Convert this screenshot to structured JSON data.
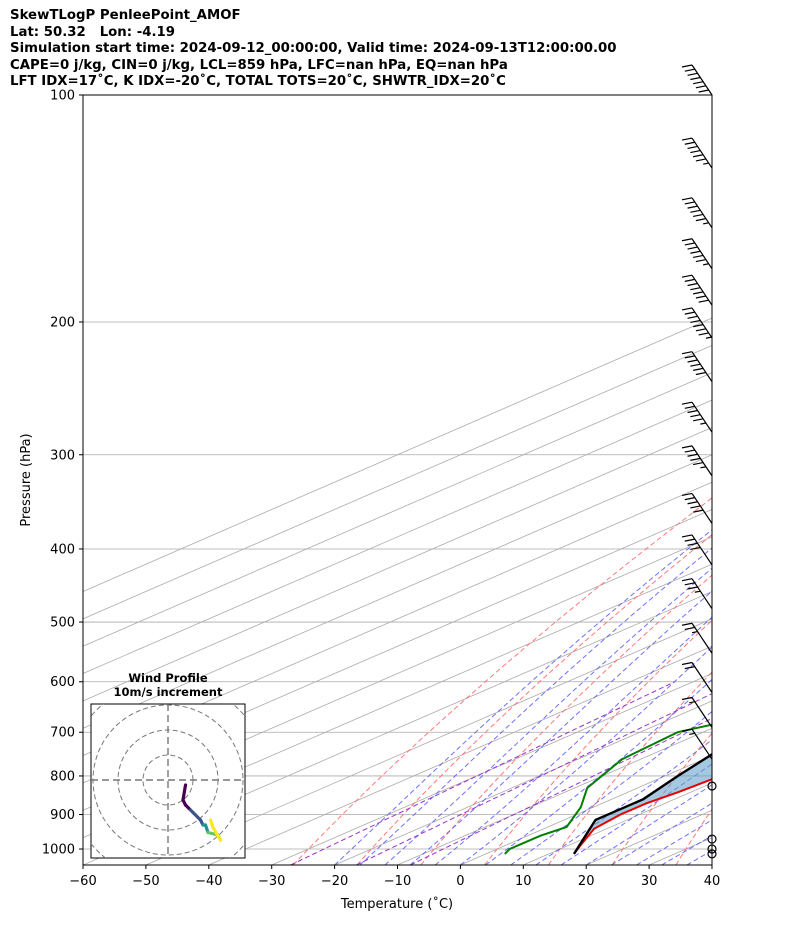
{
  "title_lines": [
    "SkewTLogP PenleePoint_AMOF",
    "Lat: 50.32   Lon: -4.19",
    "Simulation start time: 2024-09-12_00:00:00, Valid time: 2024-09-13T12:00:00.00",
    "CAPE=0 j/kg, CIN=0 j/kg, LCL=859 hPa, LFC=nan hPa, EQ=nan hPa",
    "LFT IDX=17˚C, K IDX=-20˚C, TOTAL TOTS=20˚C, SHWTR_IDX=20˚C"
  ],
  "chart_data": [
    {
      "type": "line",
      "subtype": "skew-t log-p",
      "xlabel": "Temperature (˚C)",
      "ylabel": "Pressure (hPa)",
      "xlim": [
        -60,
        40
      ],
      "ylim": [
        1050,
        100
      ],
      "y_scale": "log",
      "x_ticks": [
        -60,
        -50,
        -40,
        -30,
        -20,
        -10,
        0,
        10,
        20,
        30,
        40
      ],
      "y_ticks": [
        100,
        200,
        300,
        400,
        500,
        600,
        700,
        800,
        900,
        1000
      ],
      "grid": true,
      "series": [
        {
          "kind": "temperature",
          "color": "#e60000",
          "points": [
            [
              14,
              1015
            ],
            [
              12,
              990
            ],
            [
              8,
              940
            ],
            [
              7,
              900
            ],
            [
              7,
              870
            ],
            [
              8,
              840
            ],
            [
              9,
              790
            ],
            [
              9,
              760
            ],
            [
              8,
              720
            ],
            [
              5,
              650
            ],
            [
              4,
              600
            ],
            [
              5,
              550
            ],
            [
              5,
              500
            ],
            [
              3,
              450
            ],
            [
              1,
              400
            ],
            [
              -4,
              350
            ],
            [
              -8,
              300
            ],
            [
              -14,
              260
            ],
            [
              -15,
              230
            ],
            [
              -15,
              200
            ],
            [
              -14,
              190
            ],
            [
              -8,
              180
            ],
            [
              -8,
              165
            ],
            [
              -8,
              155
            ],
            [
              -7,
              145
            ],
            [
              -7,
              140
            ],
            [
              -5,
              130
            ],
            [
              -4,
              120
            ],
            [
              -4,
              110
            ],
            [
              -3,
              100
            ]
          ]
        },
        {
          "kind": "dewpoint",
          "color": "#008000",
          "points": [
            [
              3,
              1015
            ],
            [
              2,
              1000
            ],
            [
              2,
              960
            ],
            [
              3,
              935
            ],
            [
              -2,
              880
            ],
            [
              -8,
              830
            ],
            [
              -13,
              760
            ],
            [
              -14,
              700
            ],
            [
              -8,
              665
            ],
            [
              -2,
              630
            ],
            [
              -2,
              605
            ],
            [
              -3,
              565
            ],
            [
              -9,
              540
            ],
            [
              -10,
              510
            ],
            [
              -6,
              470
            ],
            [
              -6,
              430
            ],
            [
              -8,
              410
            ],
            [
              -9,
              390
            ],
            [
              -10,
              360
            ],
            [
              -13,
              330
            ],
            [
              -17,
              300
            ],
            [
              -21,
              260
            ],
            [
              -23,
              245
            ],
            [
              -24,
              225
            ],
            [
              -25,
              215
            ],
            [
              -24,
              205
            ],
            [
              -24,
              185
            ],
            [
              -24,
              175
            ],
            [
              -26,
              165
            ],
            [
              -28,
              155
            ],
            [
              -39,
              145
            ],
            [
              -39,
              135
            ],
            [
              -41,
              110
            ],
            [
              -38,
              100
            ]
          ]
        },
        {
          "kind": "parcel_profile",
          "color": "#000000",
          "points": [
            [
              14,
              1015
            ],
            [
              5,
              915
            ],
            [
              5,
              859
            ],
            [
              2,
              800
            ],
            [
              -3,
              700
            ],
            [
              -8,
              600
            ],
            [
              -14,
              500
            ],
            [
              -21,
              400
            ],
            [
              -30,
              300
            ],
            [
              -36,
              250
            ],
            [
              -44,
              200
            ],
            [
              -50,
              165
            ],
            [
              -56,
              135
            ],
            [
              -64,
              110
            ],
            [
              -67,
              100
            ]
          ]
        }
      ],
      "shading": {
        "between": [
          "temperature",
          "parcel_profile"
        ],
        "color": "#5b9bc8"
      },
      "reference_lines": {
        "dry_adiabats": {
          "color": "#ff6060",
          "style": "dashed"
        },
        "moist_adiabats": {
          "color": "#4c4cff",
          "style": "dashed"
        },
        "mixing_ratio_lines": {
          "color": "#9933cc",
          "style": "dashed"
        },
        "isotherms": {
          "color": "#aaaaaa",
          "style": "solid"
        },
        "isobars": {
          "color": "#aaaaaa",
          "style": "solid"
        }
      },
      "wind_barbs": {
        "color": "#000000",
        "data": [
          {
            "p": 100,
            "kt": 70
          },
          {
            "p": 125,
            "kt": 65
          },
          {
            "p": 150,
            "kt": 65
          },
          {
            "p": 170,
            "kt": 65
          },
          {
            "p": 190,
            "kt": 70
          },
          {
            "p": 210,
            "kt": 75
          },
          {
            "p": 240,
            "kt": 60
          },
          {
            "p": 280,
            "kt": 55
          },
          {
            "p": 320,
            "kt": 55
          },
          {
            "p": 370,
            "kt": 50
          },
          {
            "p": 420,
            "kt": 40
          },
          {
            "p": 480,
            "kt": 35
          },
          {
            "p": 550,
            "kt": 25
          },
          {
            "p": 620,
            "kt": 20
          },
          {
            "p": 690,
            "kt": 15
          },
          {
            "p": 760,
            "kt": 15
          },
          {
            "p": 825,
            "kt": 0
          },
          {
            "p": 970,
            "kt": 0
          },
          {
            "p": 1000,
            "kt": 0
          },
          {
            "p": 1015,
            "kt": 0
          }
        ]
      }
    },
    {
      "type": "line",
      "subtype": "hodograph",
      "title": "Wind Profile\n10m/s increment",
      "title_lines": [
        "Wind Profile",
        "10m/s increment"
      ],
      "rings": [
        10,
        20,
        30,
        40
      ],
      "colormap": [
        "#440154",
        "#3b528b",
        "#21918c",
        "#5ec962",
        "#fde725"
      ],
      "points": [
        [
          7,
          -2
        ],
        [
          6,
          -8
        ],
        [
          7,
          -10
        ],
        [
          9,
          -12
        ],
        [
          13,
          -16
        ],
        [
          14,
          -18
        ],
        [
          15,
          -18
        ],
        [
          16,
          -21
        ],
        [
          20,
          -22
        ],
        [
          21,
          -24
        ],
        [
          18,
          -19
        ],
        [
          17,
          -16
        ]
      ]
    }
  ]
}
